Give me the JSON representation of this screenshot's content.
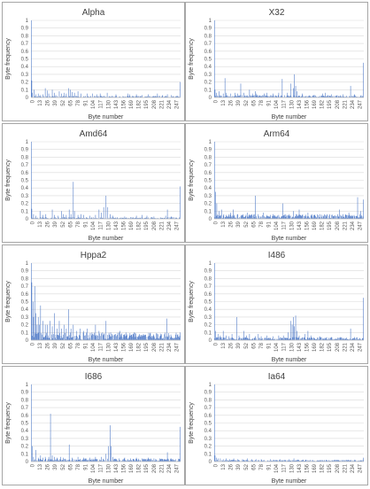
{
  "figure": {
    "xlabel": "Byte number",
    "ylabel": "Byte frequency",
    "bar_color": "#4472c4",
    "grid_color": "#d9d9d9",
    "y_ticks": [
      "0",
      "0.1",
      "0.2",
      "0.3",
      "0.4",
      "0.5",
      "0.6",
      "0.7",
      "0.8",
      "0.9",
      "1"
    ],
    "x_ticks": [
      "0",
      "13",
      "26",
      "39",
      "52",
      "65",
      "78",
      "91",
      "104",
      "117",
      "130",
      "143",
      "156",
      "169",
      "182",
      "195",
      "208",
      "221",
      "234",
      "247"
    ]
  },
  "chart_data": [
    {
      "type": "bar",
      "title": "Alpha",
      "xlabel": "Byte number",
      "ylabel": "Byte frequency",
      "xlim": [
        0,
        255
      ],
      "ylim": [
        0,
        1
      ],
      "grid": true,
      "peaks": [
        [
          0,
          1.0
        ],
        [
          1,
          0.22
        ],
        [
          2,
          0.06
        ],
        [
          5,
          0.1
        ],
        [
          8,
          0.04
        ],
        [
          12,
          0.05
        ],
        [
          16,
          0.03
        ],
        [
          20,
          0.04
        ],
        [
          24,
          0.12
        ],
        [
          28,
          0.09
        ],
        [
          30,
          0.05
        ],
        [
          36,
          0.1
        ],
        [
          40,
          0.06
        ],
        [
          42,
          0.03
        ],
        [
          48,
          0.08
        ],
        [
          52,
          0.05
        ],
        [
          56,
          0.06
        ],
        [
          60,
          0.05
        ],
        [
          64,
          0.12
        ],
        [
          67,
          0.1
        ],
        [
          70,
          0.07
        ],
        [
          74,
          0.06
        ],
        [
          80,
          0.08
        ],
        [
          85,
          0.05
        ],
        [
          96,
          0.05
        ],
        [
          105,
          0.05
        ],
        [
          112,
          0.04
        ],
        [
          118,
          0.05
        ],
        [
          130,
          0.06
        ],
        [
          145,
          0.04
        ],
        [
          165,
          0.05
        ],
        [
          168,
          0.04
        ],
        [
          180,
          0.04
        ],
        [
          190,
          0.03
        ],
        [
          200,
          0.04
        ],
        [
          216,
          0.05
        ],
        [
          225,
          0.03
        ],
        [
          233,
          0.04
        ],
        [
          240,
          0.03
        ],
        [
          255,
          0.2
        ]
      ],
      "baseline": 0.01
    },
    {
      "type": "bar",
      "title": "X32",
      "xlabel": "Byte number",
      "ylabel": "Byte frequency",
      "xlim": [
        0,
        255
      ],
      "ylim": [
        0,
        1
      ],
      "grid": true,
      "peaks": [
        [
          0,
          1.0
        ],
        [
          1,
          0.1
        ],
        [
          3,
          0.06
        ],
        [
          8,
          0.08
        ],
        [
          15,
          0.05
        ],
        [
          18,
          0.25
        ],
        [
          20,
          0.06
        ],
        [
          28,
          0.05
        ],
        [
          35,
          0.06
        ],
        [
          40,
          0.05
        ],
        [
          45,
          0.18
        ],
        [
          50,
          0.06
        ],
        [
          60,
          0.1
        ],
        [
          65,
          0.05
        ],
        [
          70,
          0.08
        ],
        [
          72,
          0.05
        ],
        [
          85,
          0.05
        ],
        [
          90,
          0.06
        ],
        [
          100,
          0.05
        ],
        [
          110,
          0.06
        ],
        [
          116,
          0.24
        ],
        [
          125,
          0.06
        ],
        [
          131,
          0.18
        ],
        [
          135,
          0.12
        ],
        [
          137,
          0.3
        ],
        [
          139,
          0.15
        ],
        [
          141,
          0.08
        ],
        [
          150,
          0.05
        ],
        [
          170,
          0.03
        ],
        [
          185,
          0.05
        ],
        [
          190,
          0.06
        ],
        [
          200,
          0.04
        ],
        [
          210,
          0.03
        ],
        [
          220,
          0.04
        ],
        [
          233,
          0.15
        ],
        [
          240,
          0.04
        ],
        [
          255,
          0.45
        ]
      ],
      "baseline": 0.015
    },
    {
      "type": "bar",
      "title": "Amd64",
      "xlabel": "Byte number",
      "ylabel": "Byte frequency",
      "xlim": [
        0,
        255
      ],
      "ylim": [
        0,
        1
      ],
      "grid": true,
      "peaks": [
        [
          0,
          1.0
        ],
        [
          1,
          0.13
        ],
        [
          4,
          0.06
        ],
        [
          8,
          0.04
        ],
        [
          15,
          0.1
        ],
        [
          20,
          0.05
        ],
        [
          25,
          0.06
        ],
        [
          36,
          0.12
        ],
        [
          40,
          0.05
        ],
        [
          46,
          0.04
        ],
        [
          52,
          0.1
        ],
        [
          55,
          0.06
        ],
        [
          60,
          0.05
        ],
        [
          65,
          0.12
        ],
        [
          68,
          0.06
        ],
        [
          72,
          0.48
        ],
        [
          74,
          0.1
        ],
        [
          80,
          0.05
        ],
        [
          85,
          0.06
        ],
        [
          90,
          0.05
        ],
        [
          100,
          0.04
        ],
        [
          110,
          0.05
        ],
        [
          116,
          0.12
        ],
        [
          120,
          0.08
        ],
        [
          124,
          0.15
        ],
        [
          128,
          0.3
        ],
        [
          131,
          0.15
        ],
        [
          135,
          0.06
        ],
        [
          140,
          0.04
        ],
        [
          160,
          0.03
        ],
        [
          180,
          0.04
        ],
        [
          190,
          0.05
        ],
        [
          198,
          0.04
        ],
        [
          210,
          0.03
        ],
        [
          230,
          0.04
        ],
        [
          233,
          0.12
        ],
        [
          240,
          0.03
        ],
        [
          255,
          0.42
        ]
      ],
      "baseline": 0.01
    },
    {
      "type": "bar",
      "title": "Arm64",
      "xlabel": "Byte number",
      "ylabel": "Byte frequency",
      "xlim": [
        0,
        255
      ],
      "ylim": [
        0,
        1
      ],
      "grid": true,
      "peaks": [
        [
          0,
          1.0
        ],
        [
          2,
          0.35
        ],
        [
          4,
          0.2
        ],
        [
          8,
          0.1
        ],
        [
          12,
          0.12
        ],
        [
          16,
          0.06
        ],
        [
          20,
          0.05
        ],
        [
          28,
          0.08
        ],
        [
          32,
          0.12
        ],
        [
          40,
          0.06
        ],
        [
          48,
          0.05
        ],
        [
          56,
          0.08
        ],
        [
          64,
          0.06
        ],
        [
          70,
          0.3
        ],
        [
          75,
          0.06
        ],
        [
          84,
          0.08
        ],
        [
          96,
          0.05
        ],
        [
          100,
          0.06
        ],
        [
          110,
          0.05
        ],
        [
          117,
          0.2
        ],
        [
          128,
          0.06
        ],
        [
          135,
          0.1
        ],
        [
          140,
          0.06
        ],
        [
          145,
          0.12
        ],
        [
          150,
          0.05
        ],
        [
          160,
          0.08
        ],
        [
          170,
          0.05
        ],
        [
          180,
          0.06
        ],
        [
          190,
          0.05
        ],
        [
          200,
          0.05
        ],
        [
          214,
          0.12
        ],
        [
          220,
          0.06
        ],
        [
          230,
          0.08
        ],
        [
          245,
          0.28
        ],
        [
          250,
          0.1
        ],
        [
          255,
          0.25
        ]
      ],
      "baseline": 0.03
    },
    {
      "type": "bar",
      "title": "Hppa2",
      "xlabel": "Byte number",
      "ylabel": "Byte frequency",
      "xlim": [
        0,
        255
      ],
      "ylim": [
        0,
        1
      ],
      "grid": true,
      "peaks": [
        [
          0,
          1.0
        ],
        [
          1,
          0.75
        ],
        [
          3,
          0.5
        ],
        [
          4,
          0.3
        ],
        [
          6,
          0.7
        ],
        [
          8,
          0.35
        ],
        [
          10,
          0.2
        ],
        [
          12,
          0.3
        ],
        [
          14,
          0.2
        ],
        [
          16,
          0.45
        ],
        [
          20,
          0.25
        ],
        [
          24,
          0.2
        ],
        [
          28,
          0.2
        ],
        [
          32,
          0.25
        ],
        [
          36,
          0.18
        ],
        [
          40,
          0.35
        ],
        [
          44,
          0.15
        ],
        [
          48,
          0.25
        ],
        [
          52,
          0.15
        ],
        [
          56,
          0.2
        ],
        [
          60,
          0.15
        ],
        [
          64,
          0.4
        ],
        [
          68,
          0.15
        ],
        [
          72,
          0.2
        ],
        [
          78,
          0.12
        ],
        [
          84,
          0.15
        ],
        [
          90,
          0.12
        ],
        [
          96,
          0.15
        ],
        [
          104,
          0.1
        ],
        [
          110,
          0.2
        ],
        [
          116,
          0.12
        ],
        [
          122,
          0.1
        ],
        [
          128,
          0.25
        ],
        [
          136,
          0.1
        ],
        [
          144,
          0.08
        ],
        [
          152,
          0.12
        ],
        [
          160,
          0.08
        ],
        [
          168,
          0.06
        ],
        [
          176,
          0.1
        ],
        [
          184,
          0.06
        ],
        [
          192,
          0.08
        ],
        [
          200,
          0.05
        ],
        [
          210,
          0.06
        ],
        [
          220,
          0.05
        ],
        [
          232,
          0.28
        ],
        [
          240,
          0.05
        ],
        [
          255,
          0.1
        ]
      ],
      "baseline": 0.05
    },
    {
      "type": "bar",
      "title": "I486",
      "xlabel": "Byte number",
      "ylabel": "Byte frequency",
      "xlim": [
        0,
        255
      ],
      "ylim": [
        0,
        1
      ],
      "grid": true,
      "peaks": [
        [
          0,
          1.0
        ],
        [
          2,
          0.12
        ],
        [
          6,
          0.08
        ],
        [
          10,
          0.06
        ],
        [
          15,
          0.12
        ],
        [
          20,
          0.06
        ],
        [
          25,
          0.05
        ],
        [
          30,
          0.08
        ],
        [
          38,
          0.3
        ],
        [
          42,
          0.06
        ],
        [
          50,
          0.12
        ],
        [
          55,
          0.06
        ],
        [
          60,
          0.08
        ],
        [
          70,
          0.05
        ],
        [
          75,
          0.08
        ],
        [
          80,
          0.05
        ],
        [
          90,
          0.06
        ],
        [
          100,
          0.05
        ],
        [
          110,
          0.06
        ],
        [
          118,
          0.06
        ],
        [
          126,
          0.1
        ],
        [
          131,
          0.25
        ],
        [
          133,
          0.2
        ],
        [
          135,
          0.3
        ],
        [
          137,
          0.18
        ],
        [
          139,
          0.32
        ],
        [
          141,
          0.12
        ],
        [
          145,
          0.06
        ],
        [
          155,
          0.08
        ],
        [
          160,
          0.12
        ],
        [
          165,
          0.06
        ],
        [
          180,
          0.05
        ],
        [
          200,
          0.04
        ],
        [
          215,
          0.04
        ],
        [
          233,
          0.15
        ],
        [
          240,
          0.04
        ],
        [
          255,
          0.55
        ]
      ],
      "baseline": 0.02
    },
    {
      "type": "bar",
      "title": "I686",
      "xlabel": "Byte number",
      "ylabel": "Byte frequency",
      "xlim": [
        0,
        255
      ],
      "ylim": [
        0,
        1
      ],
      "grid": true,
      "peaks": [
        [
          0,
          1.0
        ],
        [
          2,
          0.2
        ],
        [
          4,
          0.06
        ],
        [
          8,
          0.15
        ],
        [
          12,
          0.05
        ],
        [
          16,
          0.08
        ],
        [
          20,
          0.05
        ],
        [
          24,
          0.06
        ],
        [
          30,
          0.06
        ],
        [
          33,
          0.62
        ],
        [
          36,
          0.08
        ],
        [
          40,
          0.06
        ],
        [
          44,
          0.05
        ],
        [
          50,
          0.06
        ],
        [
          55,
          0.05
        ],
        [
          65,
          0.22
        ],
        [
          70,
          0.05
        ],
        [
          80,
          0.06
        ],
        [
          90,
          0.05
        ],
        [
          100,
          0.05
        ],
        [
          110,
          0.06
        ],
        [
          120,
          0.06
        ],
        [
          128,
          0.1
        ],
        [
          132,
          0.2
        ],
        [
          135,
          0.47
        ],
        [
          137,
          0.2
        ],
        [
          140,
          0.06
        ],
        [
          150,
          0.04
        ],
        [
          160,
          0.05
        ],
        [
          170,
          0.04
        ],
        [
          180,
          0.05
        ],
        [
          190,
          0.04
        ],
        [
          200,
          0.05
        ],
        [
          210,
          0.04
        ],
        [
          220,
          0.04
        ],
        [
          233,
          0.12
        ],
        [
          240,
          0.04
        ],
        [
          255,
          0.45
        ]
      ],
      "baseline": 0.02
    },
    {
      "type": "bar",
      "title": "Ia64",
      "xlabel": "Byte number",
      "ylabel": "Byte frequency",
      "xlim": [
        0,
        255
      ],
      "ylim": [
        0,
        1
      ],
      "grid": true,
      "peaks": [
        [
          0,
          1.0
        ],
        [
          1,
          0.08
        ],
        [
          3,
          0.05
        ],
        [
          6,
          0.04
        ],
        [
          10,
          0.04
        ],
        [
          15,
          0.03
        ],
        [
          20,
          0.04
        ],
        [
          26,
          0.03
        ],
        [
          33,
          0.04
        ],
        [
          40,
          0.03
        ],
        [
          48,
          0.03
        ],
        [
          56,
          0.04
        ],
        [
          64,
          0.03
        ],
        [
          72,
          0.03
        ],
        [
          80,
          0.03
        ],
        [
          96,
          0.03
        ],
        [
          112,
          0.03
        ],
        [
          128,
          0.03
        ],
        [
          136,
          0.04
        ],
        [
          160,
          0.02
        ],
        [
          192,
          0.02
        ],
        [
          224,
          0.02
        ],
        [
          255,
          0.05
        ]
      ],
      "baseline": 0.012
    }
  ]
}
